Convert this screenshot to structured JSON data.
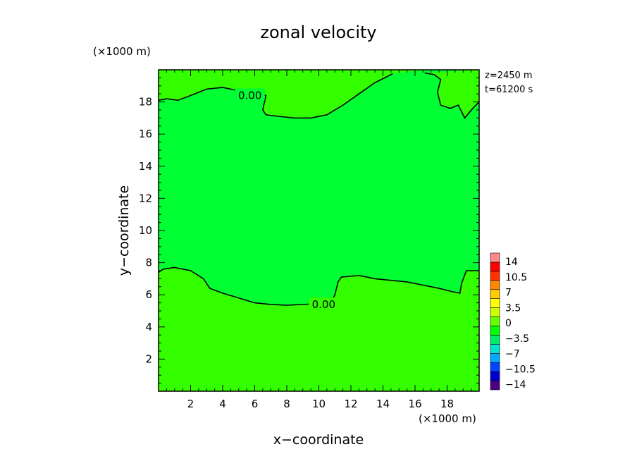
{
  "chart_data": {
    "type": "heatmap",
    "title": "zonal velocity",
    "xlabel": "x−coordinate",
    "ylabel": "y−coordinate",
    "x_unit_label": "(×1000 m)",
    "y_unit_label": "(×1000 m)",
    "xlim": [
      0,
      20
    ],
    "ylim": [
      0,
      20
    ],
    "x_ticks": [
      2,
      4,
      6,
      8,
      10,
      12,
      14,
      16,
      18
    ],
    "y_ticks": [
      2,
      4,
      6,
      8,
      10,
      12,
      14,
      16,
      18
    ],
    "x_tick_labels": [
      "2",
      "4",
      "6",
      "8",
      "10",
      "12",
      "14",
      "16",
      "18"
    ],
    "y_tick_labels": [
      "2",
      "4",
      "6",
      "8",
      "10",
      "12",
      "14",
      "16",
      "18"
    ],
    "annotations": [
      "z=2450 m",
      "t=61200 s"
    ],
    "colorbar": {
      "tick_labels": [
        "14",
        "10.5",
        "7",
        "3.5",
        "0",
        "−3.5",
        "−7",
        "−10.5",
        "−14"
      ],
      "tick_values": [
        14,
        10.5,
        7,
        3.5,
        0,
        -3.5,
        -7,
        -10.5,
        -14
      ],
      "colors": [
        "#4b0082",
        "#0000cd",
        "#0044ff",
        "#00aaff",
        "#00e5d0",
        "#00ee66",
        "#00ff00",
        "#66ff00",
        "#ccff00",
        "#ffff00",
        "#ffcc00",
        "#ff8800",
        "#ff3300",
        "#ff0000",
        "#ff8888"
      ]
    },
    "base_field_color": "#00ff33",
    "regions": [
      {
        "level": "-1.5 to 0",
        "color": "#00ff33",
        "description": "band y=7.5..18"
      },
      {
        "level": "0 to 1.5",
        "color": "#33ff00",
        "description": "below y=7 and above y=18.5"
      }
    ],
    "contours": [
      {
        "label": "0.00",
        "label_position": [
          10.3,
          5.4
        ],
        "points": [
          [
            0,
            7.4
          ],
          [
            0.3,
            7.6
          ],
          [
            1.0,
            7.7
          ],
          [
            2.0,
            7.5
          ],
          [
            2.8,
            7.0
          ],
          [
            3.2,
            6.4
          ],
          [
            4.0,
            6.1
          ],
          [
            5.0,
            5.8
          ],
          [
            6.0,
            5.5
          ],
          [
            7.0,
            5.4
          ],
          [
            8.0,
            5.35
          ],
          [
            9.0,
            5.4
          ],
          [
            10.0,
            5.45
          ],
          [
            10.8,
            5.6
          ],
          [
            11.0,
            6.0
          ],
          [
            11.2,
            6.8
          ],
          [
            11.4,
            7.1
          ],
          [
            12.5,
            7.2
          ],
          [
            13.5,
            7.0
          ],
          [
            14.5,
            6.9
          ],
          [
            15.5,
            6.8
          ],
          [
            16.5,
            6.6
          ],
          [
            17.5,
            6.4
          ],
          [
            18.3,
            6.2
          ],
          [
            18.8,
            6.1
          ],
          [
            18.9,
            6.7
          ],
          [
            19.2,
            7.5
          ],
          [
            20.0,
            7.5
          ]
        ]
      },
      {
        "label": "0.00",
        "label_position": [
          5.7,
          18.4
        ],
        "points": [
          [
            0,
            18.1
          ],
          [
            0.5,
            18.2
          ],
          [
            1.2,
            18.1
          ],
          [
            2.0,
            18.4
          ],
          [
            3.0,
            18.8
          ],
          [
            4.0,
            18.9
          ],
          [
            5.0,
            18.7
          ],
          [
            6.0,
            18.6
          ],
          [
            6.7,
            18.4
          ],
          [
            6.5,
            17.5
          ],
          [
            6.7,
            17.2
          ],
          [
            7.5,
            17.1
          ],
          [
            8.5,
            17.0
          ],
          [
            9.5,
            17.0
          ],
          [
            10.5,
            17.2
          ],
          [
            11.5,
            17.8
          ],
          [
            12.5,
            18.5
          ],
          [
            13.5,
            19.2
          ],
          [
            14.3,
            19.6
          ],
          [
            14.6,
            19.75
          ]
        ]
      },
      {
        "label": "",
        "label_position": null,
        "points": [
          [
            16.6,
            19.8
          ],
          [
            17.2,
            19.7
          ],
          [
            17.6,
            19.4
          ],
          [
            17.4,
            18.6
          ],
          [
            17.6,
            17.8
          ],
          [
            18.2,
            17.6
          ],
          [
            18.7,
            17.8
          ],
          [
            19.1,
            17.0
          ],
          [
            19.6,
            17.6
          ],
          [
            20.0,
            18.0
          ]
        ]
      }
    ]
  }
}
